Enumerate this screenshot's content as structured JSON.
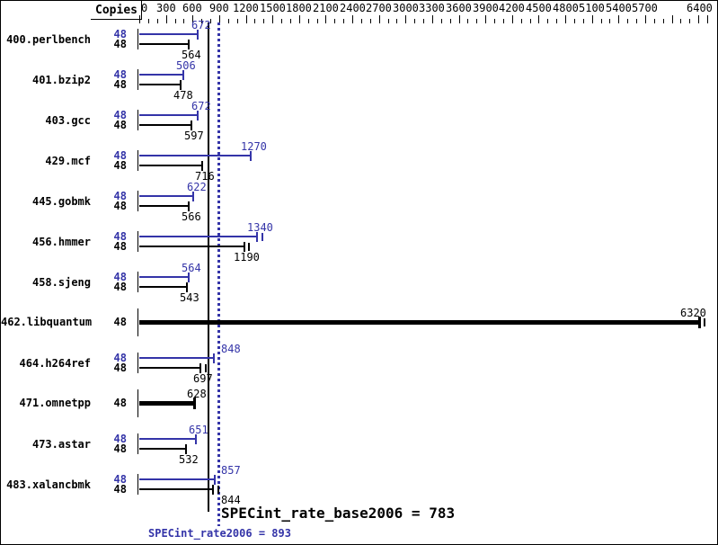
{
  "header": {
    "copies_label": "Copies"
  },
  "chart_data": {
    "type": "bar",
    "orientation": "horizontal",
    "title": "",
    "xlabel": "",
    "ylabel": "",
    "colors": {
      "peak": "#3434a8",
      "base": "#000000",
      "background": "#ffffff"
    },
    "axis": {
      "min": 0,
      "max": 6400,
      "minor_tick_step": 100,
      "major_tick_step": 300,
      "tick_labels": [
        "0",
        "300",
        "600",
        "900",
        "1200",
        "1500",
        "1800",
        "2100",
        "2400",
        "2700",
        "3000",
        "3300",
        "3600",
        "3900",
        "4200",
        "4500",
        "4800",
        "5100",
        "5400",
        "5700",
        "6400"
      ],
      "grid": false
    },
    "benchmarks": [
      {
        "name": "400.perlbench",
        "bars": [
          {
            "kind": "peak",
            "copies": 48,
            "value": 672
          },
          {
            "kind": "base",
            "copies": 48,
            "value": 564
          }
        ]
      },
      {
        "name": "401.bzip2",
        "bars": [
          {
            "kind": "peak",
            "copies": 48,
            "value": 506
          },
          {
            "kind": "base",
            "copies": 48,
            "value": 478
          }
        ]
      },
      {
        "name": "403.gcc",
        "bars": [
          {
            "kind": "peak",
            "copies": 48,
            "value": 672
          },
          {
            "kind": "base",
            "copies": 48,
            "value": 597
          }
        ]
      },
      {
        "name": "429.mcf",
        "bars": [
          {
            "kind": "peak",
            "copies": 48,
            "value": 1270
          },
          {
            "kind": "base",
            "copies": 48,
            "value": 716
          }
        ]
      },
      {
        "name": "445.gobmk",
        "bars": [
          {
            "kind": "peak",
            "copies": 48,
            "value": 622
          },
          {
            "kind": "base",
            "copies": 48,
            "value": 566
          }
        ]
      },
      {
        "name": "456.hmmer",
        "bars": [
          {
            "kind": "peak",
            "copies": 48,
            "value": 1340,
            "run_tick": 1375
          },
          {
            "kind": "base",
            "copies": 48,
            "value": 1190,
            "run_tick": 1225
          }
        ]
      },
      {
        "name": "458.sjeng",
        "bars": [
          {
            "kind": "peak",
            "copies": 48,
            "value": 564
          },
          {
            "kind": "base",
            "copies": 48,
            "value": 543
          }
        ]
      },
      {
        "name": "462.libquantum",
        "bars": [
          {
            "kind": "base",
            "copies": 48,
            "value": 6320,
            "thick": true,
            "run_tick": 6360,
            "label_mode": "end-right"
          }
        ]
      },
      {
        "name": "464.h264ref",
        "bars": [
          {
            "kind": "peak",
            "copies": 48,
            "value": 848,
            "label_mode": "after-lines"
          },
          {
            "kind": "base",
            "copies": 48,
            "value": 697,
            "run_tick": 737
          }
        ]
      },
      {
        "name": "471.omnetpp",
        "bars": [
          {
            "kind": "base",
            "copies": 48,
            "value": 628,
            "thick": true
          }
        ]
      },
      {
        "name": "473.astar",
        "bars": [
          {
            "kind": "peak",
            "copies": 48,
            "value": 651
          },
          {
            "kind": "base",
            "copies": 48,
            "value": 532
          }
        ]
      },
      {
        "name": "483.xalancbmk",
        "bars": [
          {
            "kind": "peak",
            "copies": 48,
            "value": 857,
            "label_mode": "after-lines"
          },
          {
            "kind": "base",
            "copies": 48,
            "value": 844,
            "run_tick": 880,
            "label_mode": "after-lines"
          }
        ]
      }
    ],
    "reference_lines": [
      {
        "name": "SPECint_rate_base2006",
        "value": 783,
        "style": "solid",
        "color": "#000000"
      },
      {
        "name": "SPECint_rate2006",
        "value": 893,
        "style": "dotted",
        "color": "#3434a8"
      }
    ]
  }
}
